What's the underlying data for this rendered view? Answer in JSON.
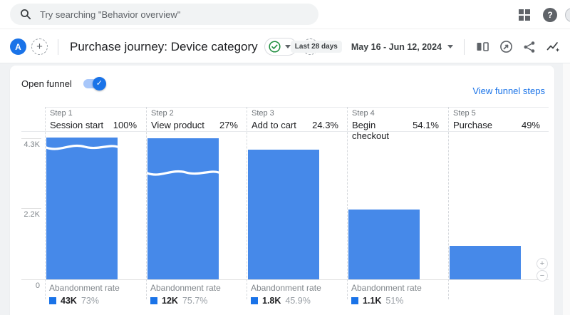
{
  "topbar": {
    "search_placeholder": "Try searching \"Behavior overview\"",
    "help_glyph": "?"
  },
  "header": {
    "workspace_letter": "A",
    "add_tab_label": "+",
    "title": "Purchase journey: Device category",
    "add_step_label": "+",
    "date_badge": "Last 28 days",
    "date_range": "May 16 - Jun 12, 2024"
  },
  "panel": {
    "open_funnel_label": "Open funnel",
    "toggle_on": true,
    "toggle_check": "✓",
    "view_funnel_steps_label": "View funnel steps"
  },
  "chart_data": {
    "type": "funnel",
    "title": "Purchase journey: Device category",
    "ylim": [
      0,
      4300
    ],
    "yticks": [
      "4.3K",
      "2.2K",
      "0"
    ],
    "grid": "ticks-only",
    "bar_color": "#4689e9",
    "steps": [
      {
        "step": "Step 1",
        "name": "Session start",
        "completion_rate": "100%",
        "bar_value": 4370,
        "truncated": true,
        "wave_offset": 6,
        "abandonment_label": "Abandonment rate",
        "abandonment_value": "43K",
        "abandonment_rate": "73%"
      },
      {
        "step": "Step 2",
        "name": "View product",
        "completion_rate": "27%",
        "bar_value": 4350,
        "truncated": true,
        "wave_offset": 41,
        "abandonment_label": "Abandonment rate",
        "abandonment_value": "12K",
        "abandonment_rate": "75.7%"
      },
      {
        "step": "Step 3",
        "name": "Add to cart",
        "completion_rate": "24.3%",
        "bar_value": 3990,
        "truncated": false,
        "abandonment_label": "Abandonment rate",
        "abandonment_value": "1.8K",
        "abandonment_rate": "45.9%"
      },
      {
        "step": "Step 4",
        "name": "Begin checkout",
        "completion_rate": "54.1%",
        "bar_value": 2150,
        "truncated": false,
        "abandonment_label": "Abandonment rate",
        "abandonment_value": "1.1K",
        "abandonment_rate": "51%"
      },
      {
        "step": "Step 5",
        "name": "Purchase",
        "completion_rate": "49%",
        "bar_value": 1030,
        "truncated": false,
        "abandonment_label": null,
        "abandonment_value": null,
        "abandonment_rate": null
      }
    ]
  },
  "zoom_controls": {
    "zoom_in": "+",
    "zoom_out": "−"
  }
}
